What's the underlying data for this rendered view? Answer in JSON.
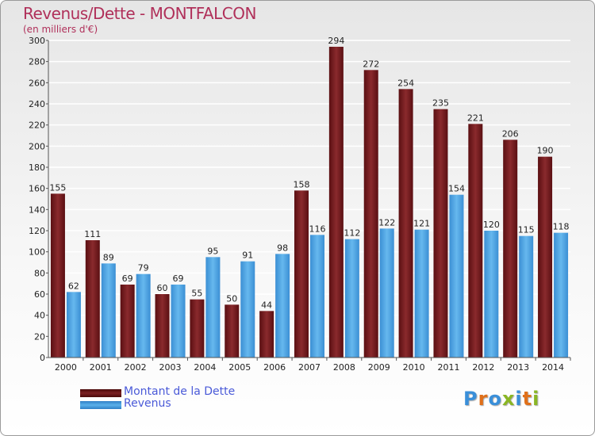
{
  "title": "Revenus/Dette - MONTFALCON",
  "subtitle": "(en milliers d'€)",
  "legend": {
    "debt_label": "Montant de la Dette",
    "revenue_label": "Revenus"
  },
  "logo_text": "Proxiti",
  "colors": {
    "debt": "#7a1f22",
    "revenue": "#4fa7e4",
    "title": "#b0305a",
    "legend_text": "#4a5ad8",
    "logo_letters": [
      "#3a8fd9",
      "#e0701a",
      "#3a8fd9",
      "#8ab624",
      "#3a8fd9",
      "#e0701a",
      "#8ab624"
    ]
  },
  "chart_data": {
    "type": "bar",
    "categories": [
      "2000",
      "2001",
      "2002",
      "2003",
      "2004",
      "2005",
      "2006",
      "2007",
      "2008",
      "2009",
      "2010",
      "2011",
      "2012",
      "2013",
      "2014"
    ],
    "series": [
      {
        "name": "Montant de la Dette",
        "values": [
          155,
          111,
          69,
          60,
          55,
          50,
          44,
          158,
          294,
          272,
          254,
          235,
          221,
          206,
          190
        ]
      },
      {
        "name": "Revenus",
        "values": [
          62,
          89,
          79,
          69,
          95,
          91,
          98,
          116,
          112,
          122,
          121,
          154,
          120,
          115,
          118
        ]
      }
    ],
    "ylim": [
      0,
      300
    ],
    "yticks": [
      0,
      20,
      40,
      60,
      80,
      100,
      120,
      140,
      160,
      180,
      200,
      220,
      240,
      260,
      280,
      300
    ],
    "grid": true,
    "legend_position": "bottom-left",
    "data_labels": true
  }
}
